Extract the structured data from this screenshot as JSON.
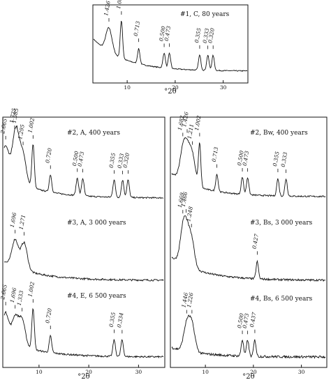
{
  "chart_data": [
    {
      "type": "line",
      "x_unit": "°2θ",
      "xlim": [
        3,
        35
      ],
      "xticks": [
        10,
        20,
        30
      ],
      "xlabel": "°2θ",
      "series": [
        {
          "name": "#1, C, 80 years",
          "peaks": [
            {
              "d": "1.426",
              "x": 6.2
            },
            {
              "d": "1.002",
              "x": 8.8
            },
            {
              "d": "0.713",
              "x": 12.4
            },
            {
              "d": "0.500",
              "x": 17.7
            },
            {
              "d": "0.473",
              "x": 18.8
            },
            {
              "d": "0.355",
              "x": 25.1
            },
            {
              "d": "0.333",
              "x": 26.8
            },
            {
              "d": "0.320",
              "x": 27.9
            }
          ]
        }
      ]
    },
    {
      "type": "line",
      "x_unit": "°2θ",
      "xlim": [
        3,
        35
      ],
      "xticks": [
        10,
        20,
        30
      ],
      "xlabel": "°2θ",
      "series": [
        {
          "name": "#2, A, 400 years",
          "peaks": [
            {
              "d": "2.665",
              "x": 3.3
            },
            {
              "d": "1.725",
              "x": 5.1
            },
            {
              "d": "1.585",
              "x": 5.6
            },
            {
              "d": "1.295",
              "x": 6.8
            },
            {
              "d": "1.002",
              "x": 8.8
            },
            {
              "d": "0.720",
              "x": 12.3
            },
            {
              "d": "0.500",
              "x": 17.7
            },
            {
              "d": "0.473",
              "x": 18.8
            },
            {
              "d": "0.355",
              "x": 25.1
            },
            {
              "d": "0.333",
              "x": 26.8
            },
            {
              "d": "0.320",
              "x": 27.9
            }
          ]
        },
        {
          "name": "#3, A, 3 000 years",
          "peaks": [
            {
              "d": "1.696",
              "x": 5.2
            },
            {
              "d": "1.271",
              "x": 7.0
            }
          ]
        },
        {
          "name": "#4, E, 6 500 years",
          "peaks": [
            {
              "d": "2.665",
              "x": 3.3
            },
            {
              "d": "1.696",
              "x": 5.2
            },
            {
              "d": "1.333",
              "x": 6.6
            },
            {
              "d": "1.002",
              "x": 8.8
            },
            {
              "d": "0.720",
              "x": 12.3
            },
            {
              "d": "0.355",
              "x": 25.1
            },
            {
              "d": "0.334",
              "x": 26.7
            }
          ]
        }
      ]
    },
    {
      "type": "line",
      "x_unit": "°2θ",
      "xlim": [
        3,
        35
      ],
      "xticks": [
        10,
        20,
        30
      ],
      "xlabel": "°2θ",
      "series": [
        {
          "name": "#2, Bw, 400 years",
          "peaks": [
            {
              "d": "1.682",
              "x": 5.3
            },
            {
              "d": "1.426",
              "x": 6.2
            },
            {
              "d": "1.211",
              "x": 7.3
            },
            {
              "d": "1.002",
              "x": 8.8
            },
            {
              "d": "0.713",
              "x": 12.4
            },
            {
              "d": "0.500",
              "x": 17.7
            },
            {
              "d": "0.473",
              "x": 18.8
            },
            {
              "d": "0.355",
              "x": 25.1
            },
            {
              "d": "0.333",
              "x": 26.8
            }
          ]
        },
        {
          "name": "#3, Bs, 3 000 years",
          "peaks": [
            {
              "d": "1.669",
              "x": 5.3
            },
            {
              "d": "1.466",
              "x": 6.0
            },
            {
              "d": "1.248",
              "x": 7.1
            },
            {
              "d": "0.427",
              "x": 20.8
            }
          ]
        },
        {
          "name": "#4, Bs, 6 500 years",
          "peaks": [
            {
              "d": "1.446",
              "x": 6.1
            },
            {
              "d": "1.226",
              "x": 7.2
            },
            {
              "d": "0.500",
              "x": 17.7
            },
            {
              "d": "0.473",
              "x": 18.8
            },
            {
              "d": "0.437",
              "x": 20.3
            }
          ]
        }
      ]
    }
  ]
}
